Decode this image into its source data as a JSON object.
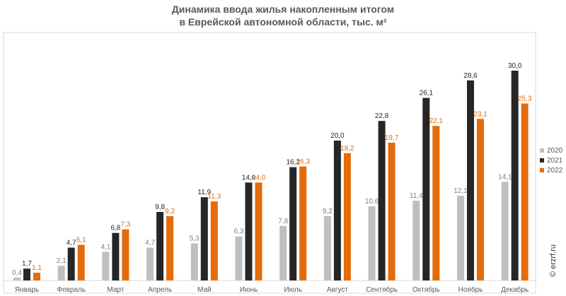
{
  "chart_data": {
    "type": "bar",
    "title_line1": "Динамика ввода жилья накопленным итогом",
    "title_line2": "в Еврейской автономной области, тыс. м²",
    "categories": [
      "Январь",
      "Февраль",
      "Март",
      "Апрель",
      "Май",
      "Июнь",
      "Июль",
      "Август",
      "Сентябрь",
      "Октябрь",
      "Ноябрь",
      "Декабрь"
    ],
    "series": [
      {
        "name": "2020",
        "color": "#bfbfbf",
        "label_color": "#808080",
        "values": [
          0.4,
          2.1,
          4.1,
          4.7,
          5.3,
          6.3,
          7.8,
          9.2,
          10.6,
          11.4,
          12.1,
          14.1
        ],
        "labels": [
          "0,4",
          "2,1",
          "4,1",
          "4,7",
          "5,3",
          "6,3",
          "7,8",
          "9,2",
          "10,6",
          "11,4",
          "12,1",
          "14,1"
        ]
      },
      {
        "name": "2021",
        "color": "#262626",
        "label_color": "#262626",
        "values": [
          1.7,
          4.7,
          6.8,
          9.8,
          11.9,
          14.0,
          16.2,
          20.0,
          22.8,
          26.1,
          28.6,
          30.0
        ],
        "labels": [
          "1,7",
          "4,7",
          "6,8",
          "9,8",
          "11,9",
          "14,0",
          "16,2",
          "20,0",
          "22,8",
          "26,1",
          "28,6",
          "30,0"
        ]
      },
      {
        "name": "2022",
        "color": "#e46c0a",
        "label_color": "#e46c0a",
        "values": [
          1.1,
          5.1,
          7.3,
          9.2,
          11.3,
          14.0,
          16.3,
          18.2,
          19.7,
          22.1,
          23.1,
          25.3
        ],
        "labels": [
          "1,1",
          "5,1",
          "7,3",
          "9,2",
          "11,3",
          "14,0",
          "16,3",
          "18,2",
          "19,7",
          "22,1",
          "23,1",
          "25,3"
        ]
      }
    ],
    "legend_position": "right",
    "grid": false,
    "ylim": [
      0,
      30.5
    ]
  },
  "watermark": "© erzrf.ru"
}
